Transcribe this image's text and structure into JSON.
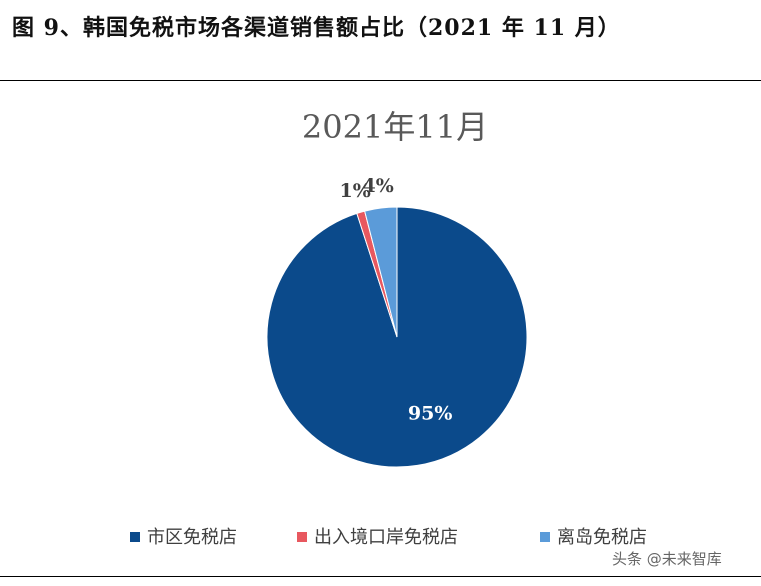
{
  "figure_caption": "图 9、韩国免税市场各渠道销售额占比（2021 年 11 月）",
  "watermark": "头条 @未来智库",
  "chart_data": {
    "type": "pie",
    "title": "2021年11月",
    "slices": [
      {
        "name": "市区免税店",
        "value": 95,
        "label": "95%",
        "color": "#0b4a8b"
      },
      {
        "name": "出入境口岸免税店",
        "value": 1,
        "label": "1%",
        "color": "#e8585f"
      },
      {
        "name": "离岛免税店",
        "value": 4,
        "label": "4%",
        "color": "#5b9bd9"
      }
    ],
    "start_angle_deg": 0,
    "direction": "clockwise",
    "legend_position": "bottom",
    "label_colors": {
      "inside": "#ffffff",
      "outside": "#404040"
    }
  }
}
